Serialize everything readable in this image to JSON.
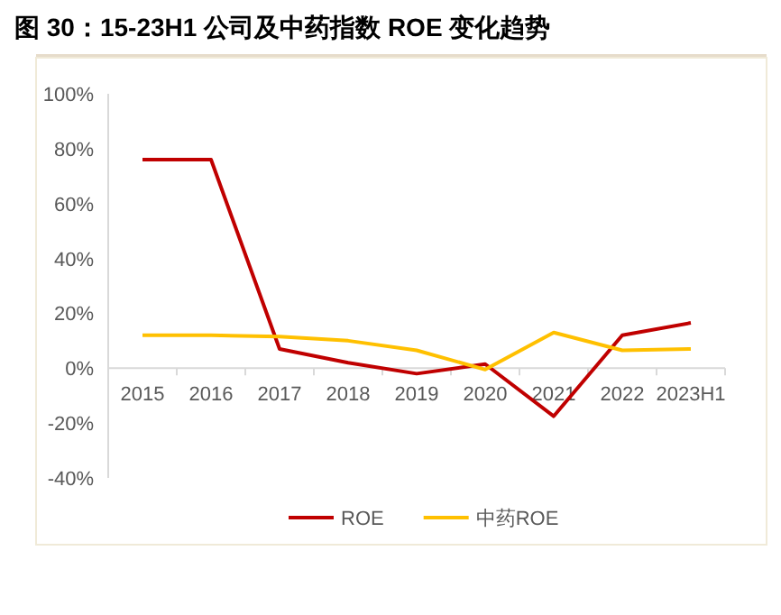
{
  "chart_data": {
    "type": "line",
    "title": "图 30：15-23H1 公司及中药指数 ROE 变化趋势",
    "categories": [
      "2015",
      "2016",
      "2017",
      "2018",
      "2019",
      "2020",
      "2021",
      "2022",
      "2023H1"
    ],
    "series": [
      {
        "name": "ROE",
        "color": "#c00000",
        "values": [
          76,
          76,
          7,
          2,
          -2,
          1.5,
          -17.5,
          12,
          16.5
        ]
      },
      {
        "name": "中药ROE",
        "color": "#ffc000",
        "values": [
          12,
          12,
          11.5,
          10,
          6.5,
          -0.5,
          13,
          6.5,
          7
        ]
      }
    ],
    "ylim": [
      -40,
      100
    ],
    "yticks": [
      {
        "value": -40,
        "label": "-40%"
      },
      {
        "value": -20,
        "label": "-20%"
      },
      {
        "value": 0,
        "label": "0%"
      },
      {
        "value": 20,
        "label": "20%"
      },
      {
        "value": 40,
        "label": "40%"
      },
      {
        "value": 60,
        "label": "60%"
      },
      {
        "value": 80,
        "label": "80%"
      },
      {
        "value": 100,
        "label": "100%"
      }
    ],
    "grid": false,
    "legend": "bottom",
    "marker": "none",
    "line_style": "solid"
  }
}
